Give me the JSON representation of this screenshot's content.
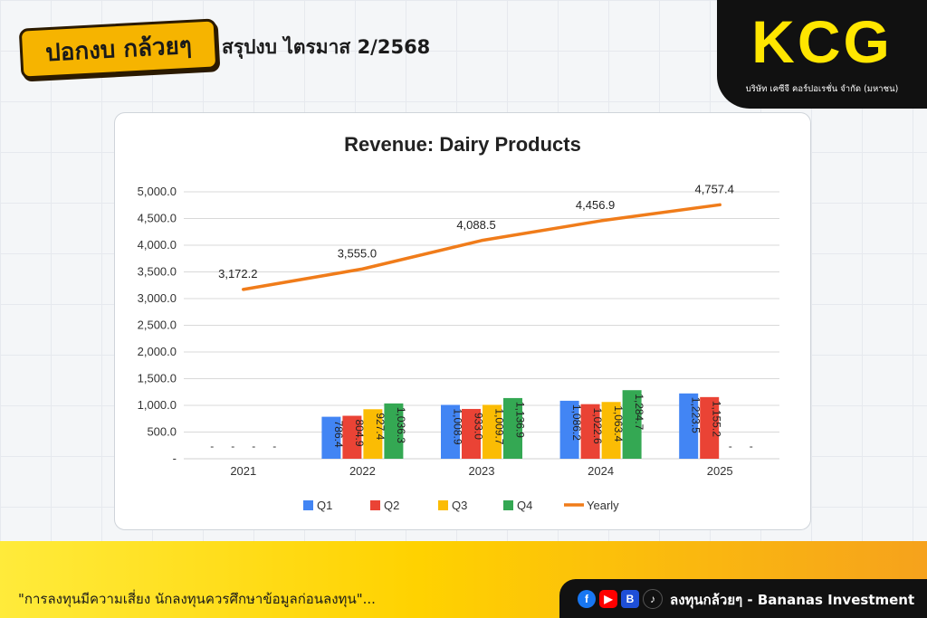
{
  "header": {
    "logo_text": "ปอกงบ กล้วยๆ",
    "title": "สรุปงบ ไตรมาส 2/2568"
  },
  "brand": {
    "name": "KCG",
    "company": "บริษัท เคซีจี คอร์ปอเรชั่น จำกัด (มหาชน)",
    "accent": "#ffe600"
  },
  "chart_data": {
    "type": "bar",
    "title": "Revenue: Dairy Products",
    "categories": [
      "2021",
      "2022",
      "2023",
      "2024",
      "2025"
    ],
    "y_ticks": [
      "-",
      "500.0",
      "1,000.0",
      "1,500.0",
      "2,000.0",
      "2,500.0",
      "3,000.0",
      "3,500.0",
      "4,000.0",
      "4,500.0",
      "5,000.0"
    ],
    "ylim": [
      0,
      5000
    ],
    "grid": true,
    "legend_position": "bottom",
    "series": [
      {
        "name": "Q1",
        "type": "bar",
        "color": "#4285f4",
        "values": [
          null,
          786.4,
          1008.9,
          1086.2,
          1223.5
        ],
        "labels": [
          "-",
          "786.4",
          "1,008.9",
          "1,086.2",
          "1,223.5"
        ]
      },
      {
        "name": "Q2",
        "type": "bar",
        "color": "#ea4335",
        "values": [
          null,
          804.9,
          933.0,
          1022.6,
          1155.2
        ],
        "labels": [
          "-",
          "804.9",
          "933.0",
          "1,022.6",
          "1,155.2"
        ]
      },
      {
        "name": "Q3",
        "type": "bar",
        "color": "#fbbc04",
        "values": [
          null,
          927.4,
          1009.7,
          1063.4,
          null
        ],
        "labels": [
          "-",
          "927.4",
          "1,009.7",
          "1,063.4",
          "-"
        ]
      },
      {
        "name": "Q4",
        "type": "bar",
        "color": "#34a853",
        "values": [
          null,
          1036.3,
          1136.9,
          1284.7,
          null
        ],
        "labels": [
          "-",
          "1,036.3",
          "1,136.9",
          "1,284.7",
          "-"
        ]
      },
      {
        "name": "Yearly",
        "type": "line",
        "color": "#f07c1a",
        "values": [
          3172.2,
          3555.0,
          4088.5,
          4456.9,
          4757.4
        ],
        "labels": [
          "3,172.2",
          "3,555.0",
          "4,088.5",
          "4,456.9",
          "4,757.4"
        ]
      }
    ]
  },
  "footer": {
    "disclaimer": "\"การลงทุนมีความเสี่ยง  นักลงทุนควรศึกษาข้อมูลก่อนลงทุน\"...",
    "channel": "ลงทุนกล้วยๆ - Bananas Investment",
    "social_icons": [
      "facebook-icon",
      "youtube-icon",
      "blockdit-icon",
      "tiktok-icon"
    ]
  }
}
